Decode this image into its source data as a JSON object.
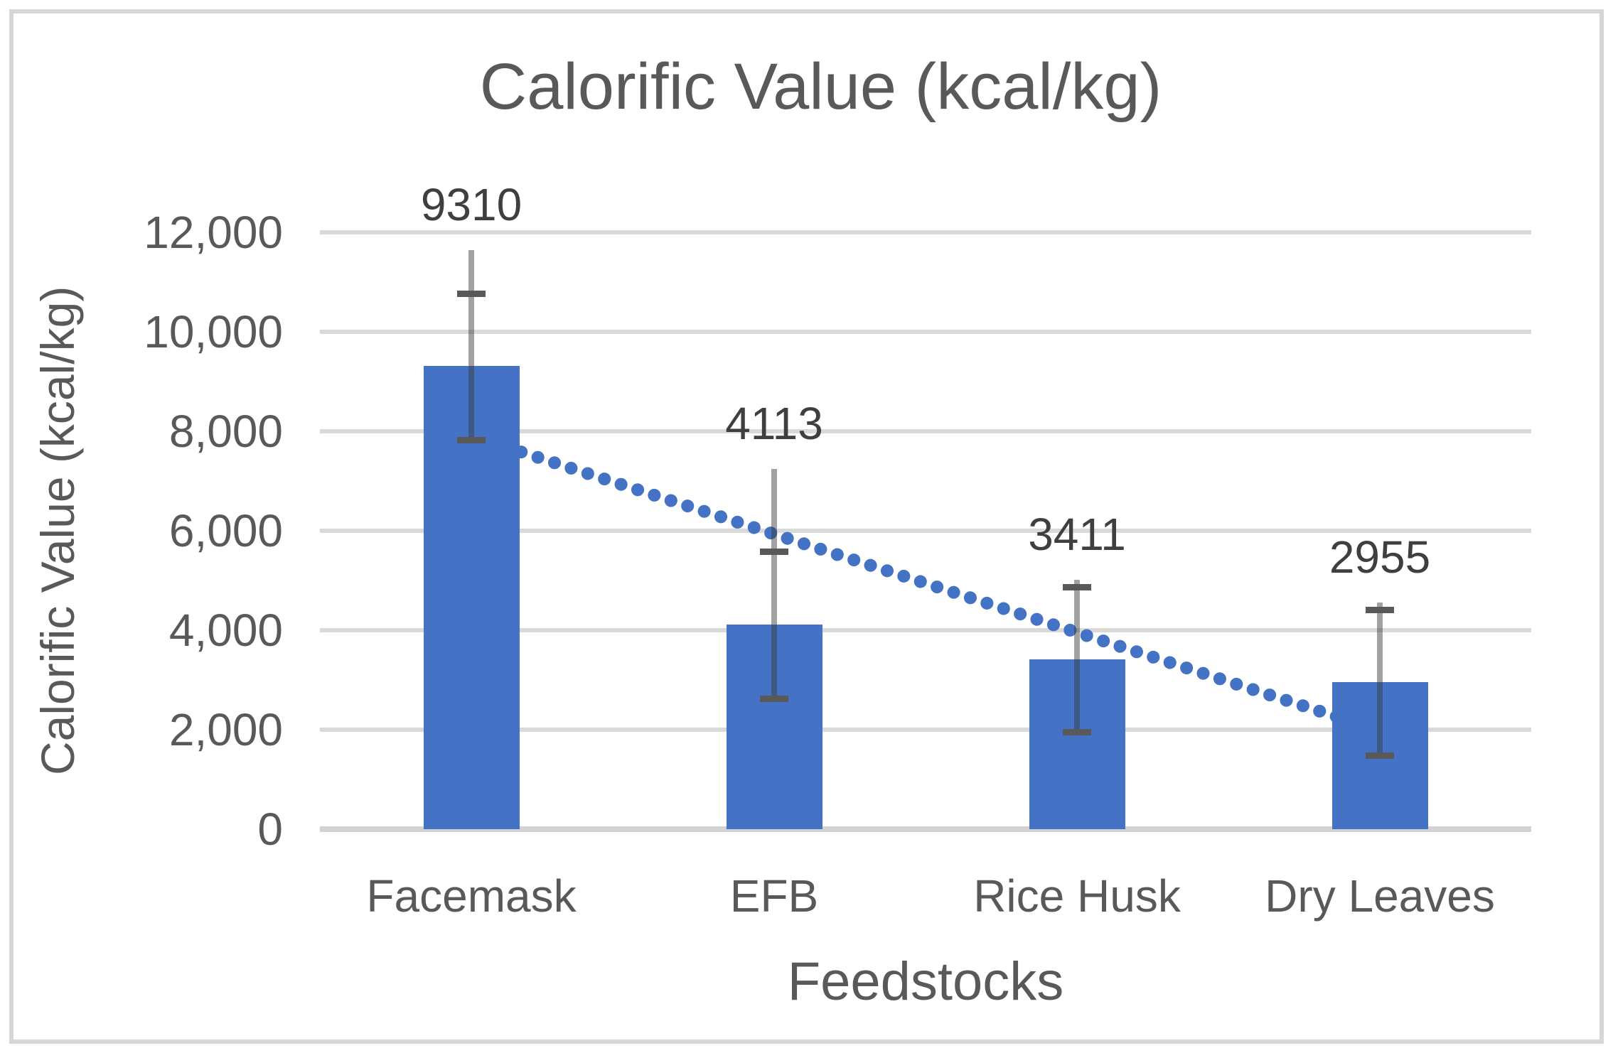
{
  "figure": {
    "background": "#ffffff",
    "border_color": "#d6d6d6"
  },
  "chart_data": {
    "type": "bar",
    "title": "Calorific Value (kcal/kg)",
    "xlabel": "Feedstocks",
    "ylabel": "Calorific Value (kcal/kg)",
    "categories": [
      "Facemask",
      "EFB",
      "Rice Husk",
      "Dry Leaves"
    ],
    "values": [
      9310,
      4113,
      3411,
      2955
    ],
    "data_labels": [
      "9310",
      "4113",
      "3411",
      "2955"
    ],
    "ylim": [
      0,
      12000
    ],
    "grid": true,
    "legend": false,
    "yticks": [
      {
        "value": 0,
        "label": "0"
      },
      {
        "value": 2000,
        "label": "2,000"
      },
      {
        "value": 4000,
        "label": "4,000"
      },
      {
        "value": 6000,
        "label": "6,000"
      },
      {
        "value": 8000,
        "label": "8,000"
      },
      {
        "value": 10000,
        "label": "10,000"
      },
      {
        "value": 12000,
        "label": "12,000"
      }
    ],
    "error_bars": [
      {
        "category": "Facemask",
        "whisker_top": 11640,
        "cap_top": 10770,
        "cap_bottom": 7830
      },
      {
        "category": "EFB",
        "whisker_top": 7240,
        "cap_top": 5590,
        "cap_bottom": 2630
      },
      {
        "category": "Rice Husk",
        "whisker_top": 5010,
        "cap_top": 4870,
        "cap_bottom": 1955
      },
      {
        "category": "Dry Leaves",
        "whisker_top": 4560,
        "cap_top": 4415,
        "cap_bottom": 1485
      }
    ],
    "trendline": {
      "type": "linear",
      "style": "dotted",
      "start_value": 7910,
      "end_value": 1980,
      "color": "#4472C4"
    },
    "colors": {
      "bar": "#4472C4",
      "gridline": "#d9d9d9",
      "axis_line": "#d2d2d2",
      "whisker": "rgba(58,58,58,0.47)",
      "cap": "#595959",
      "title_text": "#595959",
      "tick_text": "#595959",
      "data_label_text": "#3f3f3f"
    }
  }
}
